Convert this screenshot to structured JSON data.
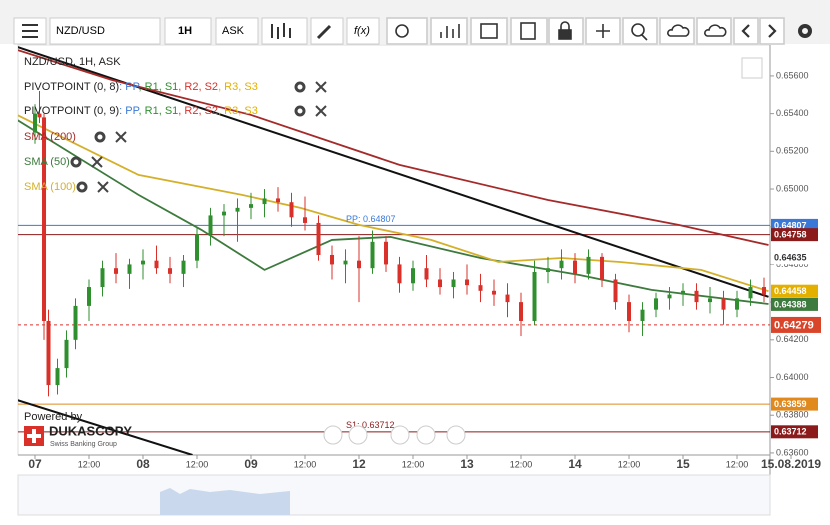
{
  "toolbar": {
    "symbol": "NZD/USD",
    "period": "1H",
    "side": "ASK",
    "fx": "f(x)"
  },
  "chart_data": {
    "type": "candlestick",
    "title": "NZD/USD, 1H, ASK",
    "x": [
      0,
      1,
      2,
      3,
      5,
      7,
      9,
      12,
      15,
      18,
      21,
      24,
      27,
      30,
      33,
      36,
      39,
      42,
      45,
      48,
      51,
      54,
      57,
      60,
      63,
      66,
      69,
      72,
      75,
      78,
      81,
      84,
      87,
      90,
      93,
      96,
      99,
      102,
      105,
      108,
      111,
      114,
      117,
      120,
      123,
      126,
      129,
      132,
      135,
      138,
      141,
      144,
      147,
      150,
      153,
      156,
      159,
      162
    ],
    "open": [
      0.653,
      0.654,
      0.6538,
      0.643,
      0.6396,
      0.6405,
      0.642,
      0.6438,
      0.6448,
      0.6458,
      0.6455,
      0.646,
      0.6462,
      0.6458,
      0.6455,
      0.6462,
      0.6476,
      0.6486,
      0.6488,
      0.649,
      0.6492,
      0.6495,
      0.6493,
      0.6485,
      0.6482,
      0.6465,
      0.646,
      0.6462,
      0.6458,
      0.6472,
      0.646,
      0.645,
      0.6458,
      0.6452,
      0.6448,
      0.6452,
      0.6449,
      0.6446,
      0.6444,
      0.644,
      0.643,
      0.6456,
      0.6458,
      0.6462,
      0.6455,
      0.6464,
      0.6452,
      0.644,
      0.643,
      0.6436,
      0.6442,
      0.6444,
      0.6446,
      0.644,
      0.6442,
      0.6436,
      0.6442,
      0.6448
    ],
    "high": [
      0.6545,
      0.6552,
      0.654,
      0.6436,
      0.641,
      0.6425,
      0.6442,
      0.6452,
      0.6462,
      0.6466,
      0.6463,
      0.6468,
      0.647,
      0.6464,
      0.6465,
      0.648,
      0.649,
      0.6492,
      0.6495,
      0.6498,
      0.65,
      0.6501,
      0.6498,
      0.6496,
      0.6486,
      0.647,
      0.6468,
      0.6475,
      0.6478,
      0.6475,
      0.6464,
      0.6462,
      0.6465,
      0.6458,
      0.6456,
      0.646,
      0.6455,
      0.6452,
      0.645,
      0.6445,
      0.6462,
      0.6464,
      0.6468,
      0.6466,
      0.6468,
      0.6466,
      0.6455,
      0.6444,
      0.644,
      0.6445,
      0.6448,
      0.645,
      0.645,
      0.6448,
      0.6446,
      0.6446,
      0.6452,
      0.6453
    ],
    "low": [
      0.6524,
      0.6535,
      0.642,
      0.639,
      0.6391,
      0.64,
      0.6415,
      0.643,
      0.6443,
      0.645,
      0.6447,
      0.6452,
      0.6455,
      0.645,
      0.6448,
      0.6458,
      0.647,
      0.6475,
      0.6472,
      0.6484,
      0.6485,
      0.6488,
      0.648,
      0.6478,
      0.6462,
      0.6452,
      0.645,
      0.644,
      0.6455,
      0.6456,
      0.6445,
      0.6446,
      0.6448,
      0.6444,
      0.6442,
      0.6444,
      0.644,
      0.6438,
      0.6432,
      0.6422,
      0.6428,
      0.645,
      0.6452,
      0.645,
      0.6452,
      0.6448,
      0.6436,
      0.6424,
      0.6422,
      0.6432,
      0.6436,
      0.6438,
      0.6436,
      0.6434,
      0.6428,
      0.6432,
      0.6438,
      0.644
    ],
    "close": [
      0.654,
      0.6538,
      0.643,
      0.6396,
      0.6405,
      0.642,
      0.6438,
      0.6448,
      0.6458,
      0.6455,
      0.646,
      0.6462,
      0.6458,
      0.6455,
      0.6462,
      0.6476,
      0.6486,
      0.6488,
      0.649,
      0.6492,
      0.6495,
      0.6493,
      0.6485,
      0.6482,
      0.6465,
      0.646,
      0.6462,
      0.6458,
      0.6472,
      0.646,
      0.645,
      0.6458,
      0.6452,
      0.6448,
      0.6452,
      0.6449,
      0.6446,
      0.6444,
      0.644,
      0.643,
      0.6456,
      0.6458,
      0.6462,
      0.6455,
      0.6464,
      0.6452,
      0.644,
      0.643,
      0.6436,
      0.6442,
      0.6444,
      0.6446,
      0.644,
      0.6442,
      0.6436,
      0.6442,
      0.6448,
      0.6444
    ],
    "up_color": "#2f8f2f",
    "down_color": "#d9302a",
    "xlim": [
      -3.78,
      163.33
    ],
    "ylim": [
      0.63589,
      0.65764
    ],
    "yticks": [
      {
        "value": 0.656,
        "label": "0.65600"
      },
      {
        "value": 0.654,
        "label": "0.65400"
      },
      {
        "value": 0.652,
        "label": "0.65200"
      },
      {
        "value": 0.65,
        "label": "0.65000"
      },
      {
        "value": 0.648,
        "label": "0.64800"
      },
      {
        "value": 0.646,
        "label": "0.64600"
      },
      {
        "value": 0.644,
        "label": "0.64400"
      },
      {
        "value": 0.642,
        "label": "0.64200"
      },
      {
        "value": 0.64,
        "label": "0.64000"
      },
      {
        "value": 0.638,
        "label": "0.63800"
      },
      {
        "value": 0.636,
        "label": "0.63600"
      }
    ],
    "xticks": [
      {
        "value": 0,
        "label": "07"
      },
      {
        "value": 12,
        "label": "12:00"
      },
      {
        "value": 24,
        "label": "08"
      },
      {
        "value": 36,
        "label": "12:00"
      },
      {
        "value": 48,
        "label": "09"
      },
      {
        "value": 60,
        "label": "12:00"
      },
      {
        "value": 72,
        "label": "12"
      },
      {
        "value": 84,
        "label": "12:00"
      },
      {
        "value": 96,
        "label": "13"
      },
      {
        "value": 108,
        "label": "12:00"
      },
      {
        "value": 120,
        "label": "14"
      },
      {
        "value": 132,
        "label": "12:00"
      },
      {
        "value": 144,
        "label": "15"
      },
      {
        "value": 156,
        "label": "12:00"
      },
      {
        "value": 168,
        "label": "15.08.2019"
      }
    ],
    "series": [
      {
        "name": "SMA (200)",
        "color": "#a52a2a",
        "x": [
          -4,
          17,
          48,
          81,
          114,
          143,
          163
        ],
        "values": [
          0.65738,
          0.65579,
          0.65393,
          0.65128,
          0.64942,
          0.6481,
          0.64703
        ]
      },
      {
        "name": "SMA (50)",
        "color": "#3d7a3d",
        "x": [
          -4,
          23,
          37,
          51,
          66,
          79,
          99,
          121,
          137,
          163
        ],
        "values": [
          0.65367,
          0.64969,
          0.64783,
          0.64571,
          0.6473,
          0.64746,
          0.64634,
          0.64544,
          0.64465,
          0.6439
        ]
      },
      {
        "name": "SMA (100)",
        "color": "#d4b02a",
        "x": [
          -4,
          23,
          46,
          59,
          72,
          88,
          103,
          117,
          130,
          148,
          163
        ],
        "values": [
          0.65393,
          0.65075,
          0.64969,
          0.649,
          0.6481,
          0.6473,
          0.64613,
          0.64634,
          0.64613,
          0.64571,
          0.64458
        ]
      }
    ],
    "trendlines": [
      {
        "x": [
          -4,
          163
        ],
        "values": [
          0.65754,
          0.64428
        ]
      },
      {
        "x": [
          -4,
          35
        ],
        "values": [
          0.63881,
          0.63589
        ]
      }
    ],
    "pivots": [
      {
        "name": "PIVOTPOINT (0, 8)",
        "items": [
          {
            "text": ": PP",
            "color": "#3a78d8"
          },
          {
            "text": ", R1",
            "color": "#2f8f2f"
          },
          {
            "text": ", S1",
            "color": "#2f8f2f"
          },
          {
            "text": ", R2",
            "color": "#d9302a"
          },
          {
            "text": ", S2",
            "color": "#d9302a"
          },
          {
            "text": ", R3",
            "color": "#e3b000"
          },
          {
            "text": ", S3",
            "color": "#e3b000"
          }
        ]
      },
      {
        "name": "PIVOTPOINT (0, 9)",
        "items": [
          {
            "text": ": PP",
            "color": "#3a78d8"
          },
          {
            "text": ", R1",
            "color": "#2f8f2f"
          },
          {
            "text": ", S1",
            "color": "#2f8f2f"
          },
          {
            "text": ", R2",
            "color": "#d9302a"
          },
          {
            "text": ", S2",
            "color": "#d9302a"
          },
          {
            "text": ", R3",
            "color": "#e3b000"
          },
          {
            "text": ", S3",
            "color": "#e3b000"
          }
        ]
      }
    ],
    "levels": [
      {
        "value": 0.64807,
        "color": "#3a78d8",
        "label": "PP: 0.64807"
      },
      {
        "value": 0.64758,
        "color": "#8b1a1a"
      },
      {
        "value": 0.64279,
        "color": "#d9302a",
        "dashed": true
      },
      {
        "value": 0.63859,
        "color": "#e08a1e"
      },
      {
        "value": 0.63712,
        "color": "#8b1a1a",
        "label": "S1: 0.63712"
      }
    ],
    "price_tags": [
      {
        "value": 0.64807,
        "color": "#3a78d8"
      },
      {
        "value": 0.64758,
        "color": "#8b1a1a"
      },
      {
        "value": 0.64635,
        "color": "#ffffff"
      },
      {
        "value": 0.64458,
        "color": "#e3b000"
      },
      {
        "value": 0.64388,
        "color": "#3d7a3d"
      },
      {
        "value": 0.64279,
        "color": "#d9452a"
      },
      {
        "value": 0.63859,
        "color": "#e08a1e"
      },
      {
        "value": 0.63712,
        "color": "#8b1a1a"
      }
    ],
    "branding": {
      "powered": "Powered by",
      "brand": "DUKASCOPY",
      "sub": "Swiss Banking Group"
    }
  }
}
